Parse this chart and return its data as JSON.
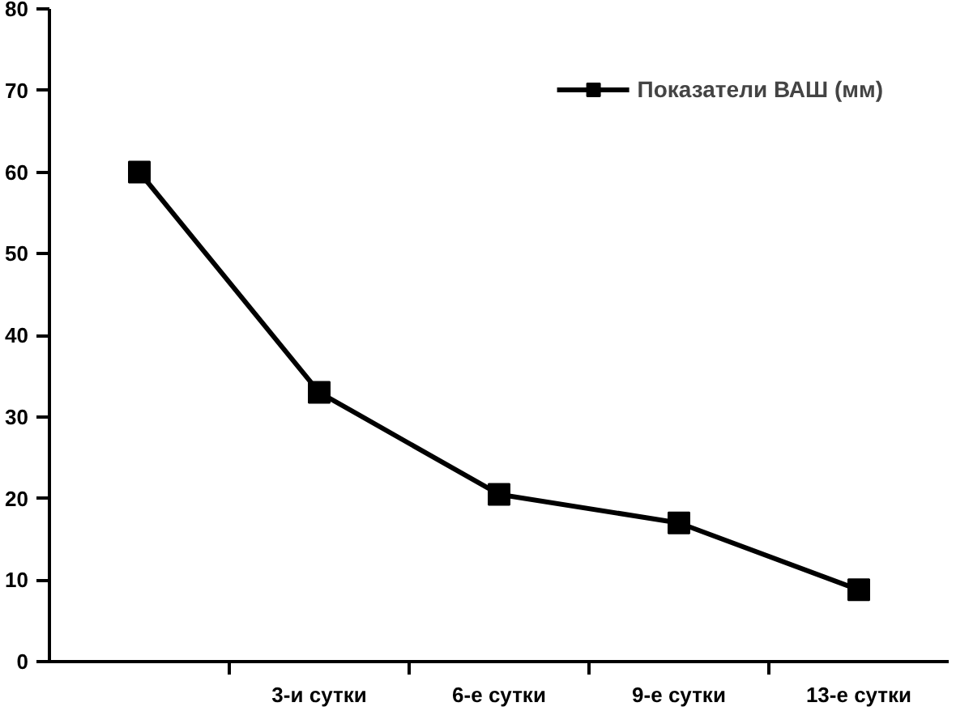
{
  "chart_data": {
    "type": "line",
    "categories": [
      null,
      "3-и сутки",
      "6-е сутки",
      "9-е сутки",
      "13-е сутки"
    ],
    "series": [
      {
        "name": "Показатели ВАШ (мм)",
        "color": "#000000",
        "values": [
          60,
          33,
          20.5,
          17,
          8.8
        ]
      }
    ],
    "ylim": [
      0,
      80
    ],
    "yticks": [
      0,
      10,
      20,
      30,
      40,
      50,
      60,
      70,
      80
    ],
    "grid": false,
    "legend": "top right",
    "marker": "square",
    "line_style": "solid"
  }
}
